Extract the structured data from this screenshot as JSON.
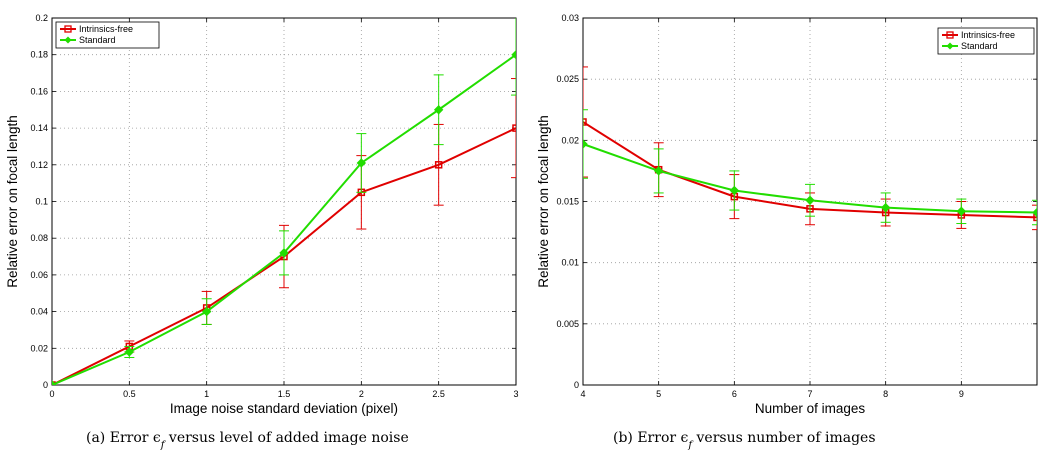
{
  "chart_data": [
    {
      "type": "line",
      "xlabel": "Image noise standard deviation (pixel)",
      "ylabel": "Relative error on focal length",
      "caption": "(a) Error ϵ",
      "caption_sub": "f",
      "caption_rest": " versus level of added image noise",
      "xlim": [
        0,
        3
      ],
      "ylim": [
        0,
        0.2
      ],
      "xticks": [
        0,
        0.5,
        1,
        1.5,
        2,
        2.5,
        3
      ],
      "xtick_labels": [
        "0",
        "0.5",
        "1",
        "1.5",
        "2",
        "2.5",
        "3"
      ],
      "yticks": [
        0,
        0.02,
        0.04,
        0.06,
        0.08,
        0.1,
        0.12,
        0.14,
        0.16,
        0.18,
        0.2
      ],
      "ytick_labels": [
        "0",
        "0.02",
        "0.04",
        "0.06",
        "0.08",
        "0.1",
        "0.12",
        "0.14",
        "0.16",
        "0.18",
        "0.2"
      ],
      "grid": true,
      "legend_position": "top-left",
      "x": [
        0,
        0.5,
        1,
        1.5,
        2,
        2.5,
        3
      ],
      "series": [
        {
          "name": "Intrinsics-free",
          "color": "#e00000",
          "marker": "square",
          "values": [
            0,
            0.021,
            0.042,
            0.07,
            0.105,
            0.12,
            0.14
          ],
          "err": [
            0,
            0.003,
            0.009,
            0.017,
            0.02,
            0.022,
            0.027
          ]
        },
        {
          "name": "Standard",
          "color": "#22dd00",
          "marker": "diamond",
          "values": [
            0,
            0.018,
            0.04,
            0.072,
            0.121,
            0.15,
            0.18
          ],
          "err": [
            0,
            0.003,
            0.007,
            0.012,
            0.016,
            0.019,
            0.022
          ]
        }
      ]
    },
    {
      "type": "line",
      "xlabel": "Number of images",
      "ylabel": "Relative error on focal length",
      "caption": "(b) Error ϵ",
      "caption_sub": "f",
      "caption_rest": " versus number of images",
      "xlim": [
        4,
        10
      ],
      "ylim": [
        0,
        0.03
      ],
      "xticks": [
        4,
        5,
        6,
        7,
        8,
        9
      ],
      "xtick_labels": [
        "4",
        "5",
        "6",
        "7",
        "8",
        "9"
      ],
      "yticks": [
        0,
        0.005,
        0.01,
        0.015,
        0.02,
        0.025,
        0.03
      ],
      "ytick_labels": [
        "0",
        "0.005",
        "0.01",
        "0.015",
        "0.02",
        "0.025",
        "0.03"
      ],
      "grid": true,
      "legend_position": "top-right",
      "x": [
        4,
        5,
        6,
        7,
        8,
        9,
        10
      ],
      "series": [
        {
          "name": "Intrinsics-free",
          "color": "#e00000",
          "marker": "square",
          "values": [
            0.0215,
            0.0176,
            0.0154,
            0.0144,
            0.0141,
            0.0139,
            0.0137
          ],
          "err": [
            0.0045,
            0.0022,
            0.0018,
            0.0013,
            0.0011,
            0.0011,
            0.001
          ]
        },
        {
          "name": "Standard",
          "color": "#22dd00",
          "marker": "diamond",
          "values": [
            0.0197,
            0.0175,
            0.0159,
            0.0151,
            0.0145,
            0.0142,
            0.0141
          ],
          "err": [
            0.0028,
            0.0018,
            0.0016,
            0.0013,
            0.0012,
            0.001,
            0.001
          ]
        }
      ]
    }
  ]
}
